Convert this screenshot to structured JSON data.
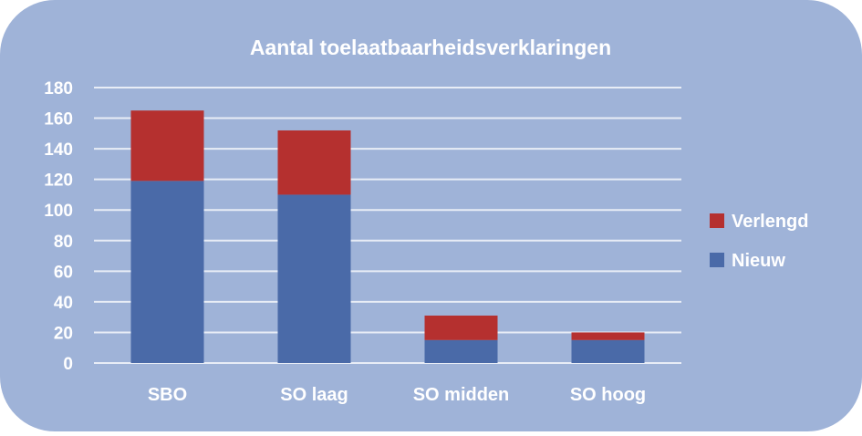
{
  "colors": {
    "background": "#9fb3d8",
    "gridline": "#e8edf6",
    "text": "#ffffff"
  },
  "chart_data": {
    "type": "bar",
    "stacked": true,
    "title": "Aantal toelaatbaarheidsverklaringen",
    "xlabel": "",
    "ylabel": "",
    "categories": [
      "SBO",
      "SO laag",
      "SO midden",
      "SO hoog"
    ],
    "series": [
      {
        "name": "Nieuw",
        "color": "#4a6aa8",
        "values": [
          119,
          110,
          15,
          15
        ]
      },
      {
        "name": "Verlengd",
        "color": "#b5302f",
        "values": [
          46,
          42,
          16,
          5
        ]
      }
    ],
    "ylim": [
      0,
      180
    ],
    "yticks": [
      0,
      20,
      40,
      60,
      80,
      100,
      120,
      140,
      160,
      180
    ],
    "grid": true,
    "legend_position": "right",
    "legend_order": [
      "Verlengd",
      "Nieuw"
    ]
  }
}
